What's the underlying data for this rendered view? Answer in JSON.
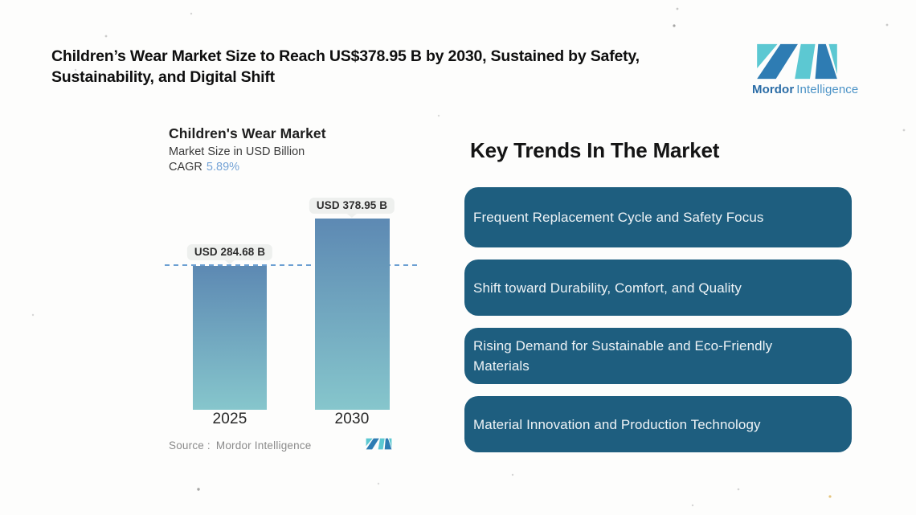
{
  "headline": {
    "line1": "Children’s Wear Market Size to Reach US$378.95 B by 2030, Sustained by Safety,",
    "line2": "Sustainability, and Digital Shift"
  },
  "brand": {
    "name_bold": "Mordor",
    "name_light": "Intelligence"
  },
  "chart": {
    "title": "Children's Wear Market",
    "subtitle": "Market Size in USD Billion",
    "cagr_label": "CAGR",
    "cagr_value": "5.89%",
    "source_label": "Source :",
    "source_value": "Mordor Intelligence",
    "bars": [
      {
        "year": "2025",
        "label": "USD 284.68 B"
      },
      {
        "year": "2030",
        "label": "USD 378.95 B"
      }
    ]
  },
  "chart_data": {
    "type": "bar",
    "title": "Children's Wear Market",
    "subtitle": "Market Size in USD Billion",
    "unit": "USD Billion",
    "cagr": "5.89%",
    "categories": [
      "2025",
      "2030"
    ],
    "values": [
      284.68,
      378.95
    ],
    "data_labels": [
      "USD 284.68 B",
      "USD 378.95 B"
    ],
    "reference_line": {
      "value": 284.68,
      "style": "dashed"
    },
    "ylim": [
      0,
      400
    ],
    "grid": false,
    "legend": "none",
    "source": "Mordor Intelligence"
  },
  "trends": {
    "heading": "Key Trends In The Market",
    "items": [
      {
        "text": "Frequent Replacement Cycle and Safety Focus"
      },
      {
        "text": "Shift toward Durability, Comfort, and Quality"
      },
      {
        "text": "Rising Demand for Sustainable and Eco-Friendly Materials"
      },
      {
        "text": "Material Innovation and Production Technology"
      }
    ]
  },
  "colors": {
    "trend_box": "#1e5e7f",
    "bar_top": "#5d89b3",
    "bar_bottom": "#86c6cc",
    "dashed_line": "#6b9fd2",
    "cagr_value": "#74a3d6",
    "logo_blue": "#2e7cb3",
    "logo_teal": "#5cc8d2",
    "brand_text_bold": "#2a6ca6",
    "brand_text_light": "#4a92c6"
  }
}
